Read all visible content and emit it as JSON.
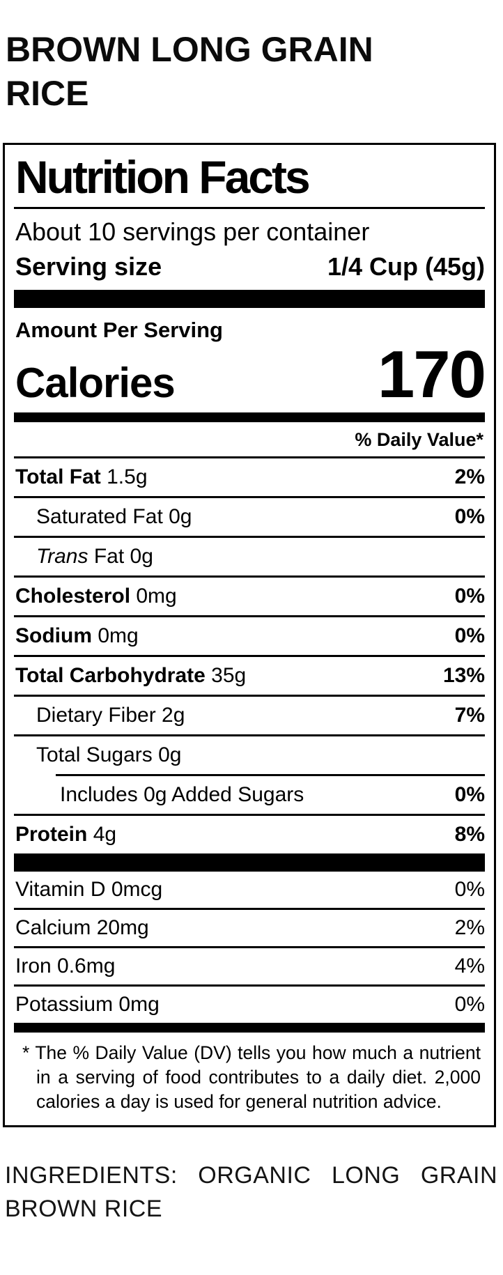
{
  "product": {
    "title": "BROWN LONG GRAIN RICE"
  },
  "label": {
    "title": "Nutrition Facts",
    "servings_per_container": "About 10 servings per container",
    "serving_size_label": "Serving size",
    "serving_size_value": "1/4 Cup (45g)",
    "amount_per_serving": "Amount Per Serving",
    "calories_label": "Calories",
    "calories_value": "170",
    "daily_value_header": "% Daily Value*",
    "main_rows": [
      {
        "name": "Total Fat",
        "amount": "1.5g",
        "dv": "2%",
        "name_bold": true,
        "dv_bold": true,
        "indent": 0,
        "sep": "full"
      },
      {
        "name": "Saturated Fat",
        "amount": "0g",
        "dv": "0%",
        "name_bold": false,
        "dv_bold": true,
        "indent": 1,
        "sep": "full"
      },
      {
        "italic_prefix": "Trans",
        "name": "Fat",
        "amount": "0g",
        "dv": "",
        "name_bold": false,
        "dv_bold": false,
        "indent": 1,
        "sep": "full"
      },
      {
        "name": "Cholesterol",
        "amount": "0mg",
        "dv": "0%",
        "name_bold": true,
        "dv_bold": true,
        "indent": 0,
        "sep": "full"
      },
      {
        "name": "Sodium",
        "amount": "0mg",
        "dv": "0%",
        "name_bold": true,
        "dv_bold": true,
        "indent": 0,
        "sep": "full"
      },
      {
        "name": "Total Carbohydrate",
        "amount": "35g",
        "dv": "13%",
        "name_bold": true,
        "dv_bold": true,
        "indent": 0,
        "sep": "full"
      },
      {
        "name": "Dietary Fiber",
        "amount": "2g",
        "dv": "7%",
        "name_bold": false,
        "dv_bold": true,
        "indent": 1,
        "sep": "full"
      },
      {
        "name": "Total Sugars",
        "amount": "0g",
        "dv": "",
        "name_bold": false,
        "dv_bold": false,
        "indent": 1,
        "sep": "indent"
      },
      {
        "name": "Includes 0g Added Sugars",
        "amount": "",
        "dv": "0%",
        "name_bold": false,
        "dv_bold": true,
        "indent": 2,
        "sep": "full"
      },
      {
        "name": "Protein",
        "amount": "4g",
        "dv": "8%",
        "name_bold": true,
        "dv_bold": true,
        "indent": 0,
        "sep": "none"
      }
    ],
    "vitamin_rows": [
      {
        "name": "Vitamin D",
        "amount": "0mcg",
        "dv": "0%",
        "name_bold": false,
        "dv_bold": false,
        "indent": 0,
        "sep": "full"
      },
      {
        "name": "Calcium",
        "amount": "20mg",
        "dv": "2%",
        "name_bold": false,
        "dv_bold": false,
        "indent": 0,
        "sep": "full"
      },
      {
        "name": "Iron",
        "amount": "0.6mg",
        "dv": "4%",
        "name_bold": false,
        "dv_bold": false,
        "indent": 0,
        "sep": "full"
      },
      {
        "name": "Potassium",
        "amount": "0mg",
        "dv": "0%",
        "name_bold": false,
        "dv_bold": false,
        "indent": 0,
        "sep": "none"
      }
    ],
    "footnote": "* The % Daily Value (DV) tells you how much a nutrient in a serving of food contributes to a daily diet. 2,000 calories a day is used for general nutrition advice."
  },
  "ingredients": "INGREDIENTS: ORGANIC LONG GRAIN BROWN RICE",
  "colors": {
    "text": "#000000",
    "background": "#ffffff"
  }
}
